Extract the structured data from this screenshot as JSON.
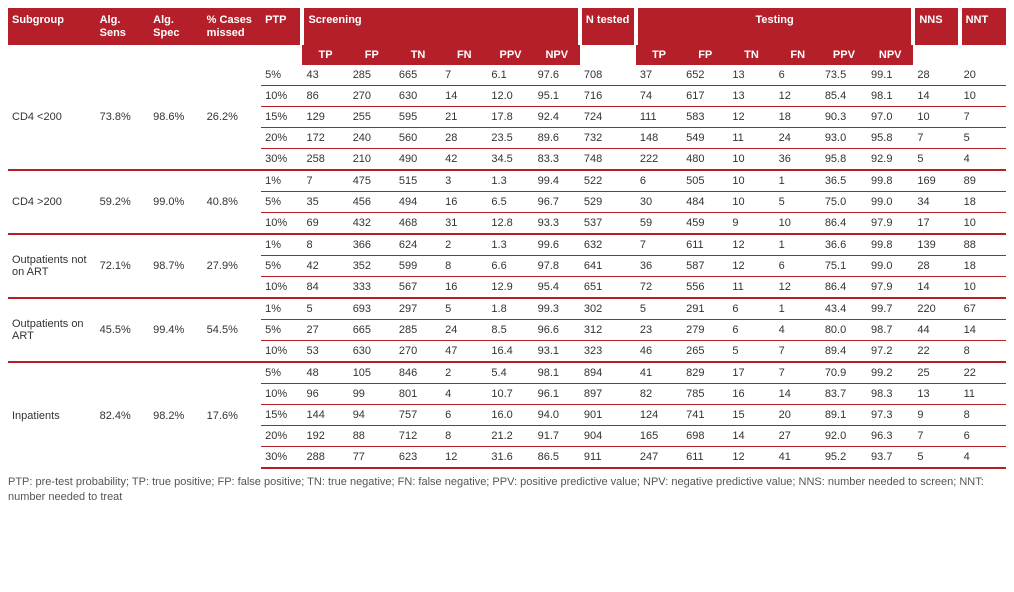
{
  "colors": {
    "brand": "#b51f2a",
    "background": "#ffffff",
    "text": "#333333",
    "footnote": "#555555"
  },
  "header": {
    "row1": {
      "subgroup": "Subgroup",
      "alg_sens": "Alg. Sens",
      "alg_spec": "Alg. Spec",
      "pct_missed": "% Cases missed",
      "ptp": "PTP",
      "screening": "Screening",
      "n_tested": "N tested",
      "testing": "Testing",
      "nns": "NNS",
      "nnt": "NNT"
    },
    "row2": {
      "s_tp": "TP",
      "s_fp": "FP",
      "s_tn": "TN",
      "s_fn": "FN",
      "s_ppv": "PPV",
      "s_npv": "NPV",
      "t_tp": "TP",
      "t_fp": "FP",
      "t_tn": "TN",
      "t_fn": "FN",
      "t_ppv": "PPV",
      "t_npv": "NPV"
    }
  },
  "groups": [
    {
      "subgroup": "CD4 <200",
      "alg_sens": "73.8%",
      "alg_spec": "98.6%",
      "pct_missed": "26.2%",
      "rows": [
        {
          "ptp": "5%",
          "s_tp": "43",
          "s_fp": "285",
          "s_tn": "665",
          "s_fn": "7",
          "s_ppv": "6.1",
          "s_npv": "97.6",
          "n": "708",
          "t_tp": "37",
          "t_fp": "652",
          "t_tn": "13",
          "t_fn": "6",
          "t_ppv": "73.5",
          "t_npv": "99.1",
          "nns": "28",
          "nnt": "20"
        },
        {
          "ptp": "10%",
          "s_tp": "86",
          "s_fp": "270",
          "s_tn": "630",
          "s_fn": "14",
          "s_ppv": "12.0",
          "s_npv": "95.1",
          "n": "716",
          "t_tp": "74",
          "t_fp": "617",
          "t_tn": "13",
          "t_fn": "12",
          "t_ppv": "85.4",
          "t_npv": "98.1",
          "nns": "14",
          "nnt": "10"
        },
        {
          "ptp": "15%",
          "s_tp": "129",
          "s_fp": "255",
          "s_tn": "595",
          "s_fn": "21",
          "s_ppv": "17.8",
          "s_npv": "92.4",
          "n": "724",
          "t_tp": "111",
          "t_fp": "583",
          "t_tn": "12",
          "t_fn": "18",
          "t_ppv": "90.3",
          "t_npv": "97.0",
          "nns": "10",
          "nnt": "7"
        },
        {
          "ptp": "20%",
          "s_tp": "172",
          "s_fp": "240",
          "s_tn": "560",
          "s_fn": "28",
          "s_ppv": "23.5",
          "s_npv": "89.6",
          "n": "732",
          "t_tp": "148",
          "t_fp": "549",
          "t_tn": "11",
          "t_fn": "24",
          "t_ppv": "93.0",
          "t_npv": "95.8",
          "nns": "7",
          "nnt": "5"
        },
        {
          "ptp": "30%",
          "s_tp": "258",
          "s_fp": "210",
          "s_tn": "490",
          "s_fn": "42",
          "s_ppv": "34.5",
          "s_npv": "83.3",
          "n": "748",
          "t_tp": "222",
          "t_fp": "480",
          "t_tn": "10",
          "t_fn": "36",
          "t_ppv": "95.8",
          "t_npv": "92.9",
          "nns": "5",
          "nnt": "4"
        }
      ]
    },
    {
      "subgroup": "CD4 >200",
      "alg_sens": "59.2%",
      "alg_spec": "99.0%",
      "pct_missed": "40.8%",
      "rows": [
        {
          "ptp": "1%",
          "s_tp": "7",
          "s_fp": "475",
          "s_tn": "515",
          "s_fn": "3",
          "s_ppv": "1.3",
          "s_npv": "99.4",
          "n": "522",
          "t_tp": "6",
          "t_fp": "505",
          "t_tn": "10",
          "t_fn": "1",
          "t_ppv": "36.5",
          "t_npv": "99.8",
          "nns": "169",
          "nnt": "89"
        },
        {
          "ptp": "5%",
          "s_tp": "35",
          "s_fp": "456",
          "s_tn": "494",
          "s_fn": "16",
          "s_ppv": "6.5",
          "s_npv": "96.7",
          "n": "529",
          "t_tp": "30",
          "t_fp": "484",
          "t_tn": "10",
          "t_fn": "5",
          "t_ppv": "75.0",
          "t_npv": "99.0",
          "nns": "34",
          "nnt": "18"
        },
        {
          "ptp": "10%",
          "s_tp": "69",
          "s_fp": "432",
          "s_tn": "468",
          "s_fn": "31",
          "s_ppv": "12.8",
          "s_npv": "93.3",
          "n": "537",
          "t_tp": "59",
          "t_fp": "459",
          "t_tn": "9",
          "t_fn": "10",
          "t_ppv": "86.4",
          "t_npv": "97.9",
          "nns": "17",
          "nnt": "10"
        }
      ]
    },
    {
      "subgroup": "Outpatients not on ART",
      "alg_sens": "72.1%",
      "alg_spec": "98.7%",
      "pct_missed": "27.9%",
      "rows": [
        {
          "ptp": "1%",
          "s_tp": "8",
          "s_fp": "366",
          "s_tn": "624",
          "s_fn": "2",
          "s_ppv": "1.3",
          "s_npv": "99.6",
          "n": "632",
          "t_tp": "7",
          "t_fp": "611",
          "t_tn": "12",
          "t_fn": "1",
          "t_ppv": "36.6",
          "t_npv": "99.8",
          "nns": "139",
          "nnt": "88"
        },
        {
          "ptp": "5%",
          "s_tp": "42",
          "s_fp": "352",
          "s_tn": "599",
          "s_fn": "8",
          "s_ppv": "6.6",
          "s_npv": "97.8",
          "n": "641",
          "t_tp": "36",
          "t_fp": "587",
          "t_tn": "12",
          "t_fn": "6",
          "t_ppv": "75.1",
          "t_npv": "99.0",
          "nns": "28",
          "nnt": "18"
        },
        {
          "ptp": "10%",
          "s_tp": "84",
          "s_fp": "333",
          "s_tn": "567",
          "s_fn": "16",
          "s_ppv": "12.9",
          "s_npv": "95.4",
          "n": "651",
          "t_tp": "72",
          "t_fp": "556",
          "t_tn": "11",
          "t_fn": "12",
          "t_ppv": "86.4",
          "t_npv": "97.9",
          "nns": "14",
          "nnt": "10"
        }
      ]
    },
    {
      "subgroup": "Outpatients on ART",
      "alg_sens": "45.5%",
      "alg_spec": "99.4%",
      "pct_missed": "54.5%",
      "rows": [
        {
          "ptp": "1%",
          "s_tp": "5",
          "s_fp": "693",
          "s_tn": "297",
          "s_fn": "5",
          "s_ppv": "1.8",
          "s_npv": "99.3",
          "n": "302",
          "t_tp": "5",
          "t_fp": "291",
          "t_tn": "6",
          "t_fn": "1",
          "t_ppv": "43.4",
          "t_npv": "99.7",
          "nns": "220",
          "nnt": "67"
        },
        {
          "ptp": "5%",
          "s_tp": "27",
          "s_fp": "665",
          "s_tn": "285",
          "s_fn": "24",
          "s_ppv": "8.5",
          "s_npv": "96.6",
          "n": "312",
          "t_tp": "23",
          "t_fp": "279",
          "t_tn": "6",
          "t_fn": "4",
          "t_ppv": "80.0",
          "t_npv": "98.7",
          "nns": "44",
          "nnt": "14"
        },
        {
          "ptp": "10%",
          "s_tp": "53",
          "s_fp": "630",
          "s_tn": "270",
          "s_fn": "47",
          "s_ppv": "16.4",
          "s_npv": "93.1",
          "n": "323",
          "t_tp": "46",
          "t_fp": "265",
          "t_tn": "5",
          "t_fn": "7",
          "t_ppv": "89.4",
          "t_npv": "97.2",
          "nns": "22",
          "nnt": "8"
        }
      ]
    },
    {
      "subgroup": "Inpatients",
      "alg_sens": "82.4%",
      "alg_spec": "98.2%",
      "pct_missed": "17.6%",
      "rows": [
        {
          "ptp": "5%",
          "s_tp": "48",
          "s_fp": "105",
          "s_tn": "846",
          "s_fn": "2",
          "s_ppv": "5.4",
          "s_npv": "98.1",
          "n": "894",
          "t_tp": "41",
          "t_fp": "829",
          "t_tn": "17",
          "t_fn": "7",
          "t_ppv": "70.9",
          "t_npv": "99.2",
          "nns": "25",
          "nnt": "22"
        },
        {
          "ptp": "10%",
          "s_tp": "96",
          "s_fp": "99",
          "s_tn": "801",
          "s_fn": "4",
          "s_ppv": "10.7",
          "s_npv": "96.1",
          "n": "897",
          "t_tp": "82",
          "t_fp": "785",
          "t_tn": "16",
          "t_fn": "14",
          "t_ppv": "83.7",
          "t_npv": "98.3",
          "nns": "13",
          "nnt": "11"
        },
        {
          "ptp": "15%",
          "s_tp": "144",
          "s_fp": "94",
          "s_tn": "757",
          "s_fn": "6",
          "s_ppv": "16.0",
          "s_npv": "94.0",
          "n": "901",
          "t_tp": "124",
          "t_fp": "741",
          "t_tn": "15",
          "t_fn": "20",
          "t_ppv": "89.1",
          "t_npv": "97.3",
          "nns": "9",
          "nnt": "8"
        },
        {
          "ptp": "20%",
          "s_tp": "192",
          "s_fp": "88",
          "s_tn": "712",
          "s_fn": "8",
          "s_ppv": "21.2",
          "s_npv": "91.7",
          "n": "904",
          "t_tp": "165",
          "t_fp": "698",
          "t_tn": "14",
          "t_fn": "27",
          "t_ppv": "92.0",
          "t_npv": "96.3",
          "nns": "7",
          "nnt": "6"
        },
        {
          "ptp": "30%",
          "s_tp": "288",
          "s_fp": "77",
          "s_tn": "623",
          "s_fn": "12",
          "s_ppv": "31.6",
          "s_npv": "86.5",
          "n": "911",
          "t_tp": "247",
          "t_fp": "611",
          "t_tn": "12",
          "t_fn": "41",
          "t_ppv": "95.2",
          "t_npv": "93.7",
          "nns": "5",
          "nnt": "4"
        }
      ]
    }
  ],
  "footnote": "PTP: pre-test probability; TP: true positive; FP: false positive; TN: true negative; FN: false negative; PPV: positive predictive value; NPV: negative predictive value; NNS: number needed to screen; NNT: number needed to treat"
}
